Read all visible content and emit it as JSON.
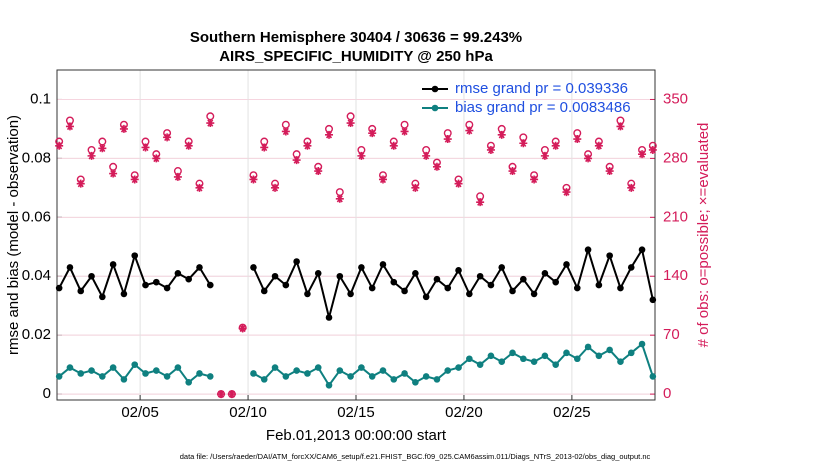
{
  "chart_data": {
    "type": "line",
    "title": "Southern Hemisphere 30404 / 30636 = 99.243%",
    "subtitle": "AIRS_SPECIFIC_HUMIDITY @ 250 hPa",
    "x_label": "Feb.01,2013 00:00:00 start",
    "y_label": "rmse and bias (model - observation)",
    "y2_label": "# of obs: o=possible; ×=evaluated",
    "footnote": "data file: /Users/raeder/DAI/ATM_forcXX/CAM6_setup/f.e21.FHIST_BGC.f09_025.CAM6assim.011/Diags_NTrS_2013-02/obs_diag_output.nc",
    "xlim": [
      1.15,
      28.85
    ],
    "xticks": [
      {
        "value": 5,
        "label": "02/05"
      },
      {
        "value": 10,
        "label": "02/10"
      },
      {
        "value": 15,
        "label": "02/15"
      },
      {
        "value": 20,
        "label": "02/20"
      },
      {
        "value": 25,
        "label": "02/25"
      }
    ],
    "ylim": [
      -0.002,
      0.11
    ],
    "yticks": [
      0,
      0.02,
      0.04,
      0.06,
      0.08,
      0.1
    ],
    "y2lim": [
      -7,
      385
    ],
    "y2ticks": [
      0,
      70,
      140,
      210,
      280,
      350
    ],
    "grid": true,
    "legend": "top-right",
    "x": [
      1.25,
      1.75,
      2.25,
      2.75,
      3.25,
      3.75,
      4.25,
      4.75,
      5.25,
      5.75,
      6.25,
      6.75,
      7.25,
      7.75,
      8.25,
      8.75,
      9.25,
      9.75,
      10.25,
      10.75,
      11.25,
      11.75,
      12.25,
      12.75,
      13.25,
      13.75,
      14.25,
      14.75,
      15.25,
      15.75,
      16.25,
      16.75,
      17.25,
      17.75,
      18.25,
      18.75,
      19.25,
      19.75,
      20.25,
      20.75,
      21.25,
      21.75,
      22.25,
      22.75,
      23.25,
      23.75,
      24.25,
      24.75,
      25.25,
      25.75,
      26.25,
      26.75,
      27.25,
      27.75,
      28.25,
      28.75
    ],
    "series": [
      {
        "name": "rmse grand pr = 0.039336",
        "color": "#000000",
        "marker": "filled",
        "values": [
          0.036,
          0.043,
          0.035,
          0.04,
          0.033,
          0.044,
          0.034,
          0.047,
          0.037,
          0.038,
          0.036,
          0.041,
          0.039,
          0.043,
          0.037,
          null,
          null,
          null,
          0.043,
          0.035,
          0.04,
          0.037,
          0.045,
          0.034,
          0.041,
          0.026,
          0.04,
          0.034,
          0.043,
          0.036,
          0.044,
          0.038,
          0.035,
          0.041,
          0.033,
          0.039,
          0.036,
          0.042,
          0.034,
          0.04,
          0.037,
          0.043,
          0.035,
          0.039,
          0.034,
          0.041,
          0.038,
          0.044,
          0.036,
          0.049,
          0.037,
          0.047,
          0.036,
          0.043,
          0.049,
          0.032
        ]
      },
      {
        "name": "bias grand pr = 0.0083486",
        "color": "#0f8080",
        "marker": "filled",
        "values": [
          0.006,
          0.009,
          0.007,
          0.008,
          0.006,
          0.009,
          0.005,
          0.01,
          0.007,
          0.008,
          0.006,
          0.009,
          0.004,
          0.007,
          0.006,
          null,
          null,
          null,
          0.007,
          0.005,
          0.009,
          0.006,
          0.008,
          0.007,
          0.009,
          0.003,
          0.008,
          0.006,
          0.009,
          0.006,
          0.008,
          0.005,
          0.007,
          0.004,
          0.006,
          0.005,
          0.008,
          0.009,
          0.012,
          0.01,
          0.013,
          0.011,
          0.014,
          0.012,
          0.011,
          0.013,
          0.01,
          0.014,
          0.012,
          0.016,
          0.013,
          0.015,
          0.011,
          0.014,
          0.017,
          0.006
        ]
      },
      {
        "axis": "y2",
        "color": "#d41c5a",
        "marker": "o",
        "values": [
          300,
          325,
          255,
          290,
          300,
          270,
          320,
          260,
          300,
          285,
          310,
          265,
          300,
          250,
          330,
          0,
          0,
          79,
          260,
          300,
          250,
          320,
          285,
          300,
          270,
          315,
          240,
          330,
          290,
          315,
          260,
          300,
          320,
          250,
          290,
          275,
          310,
          255,
          320,
          235,
          295,
          315,
          270,
          305,
          260,
          290,
          300,
          245,
          310,
          285,
          300,
          270,
          325,
          250,
          290,
          295
        ]
      },
      {
        "axis": "y2",
        "color": "#d41c5a",
        "marker": "*",
        "values": [
          295,
          318,
          250,
          283,
          292,
          262,
          315,
          255,
          293,
          280,
          305,
          258,
          295,
          245,
          322,
          0,
          0,
          78,
          255,
          293,
          245,
          312,
          278,
          295,
          265,
          308,
          232,
          322,
          283,
          310,
          255,
          295,
          312,
          245,
          283,
          270,
          303,
          250,
          313,
          228,
          290,
          308,
          265,
          298,
          255,
          283,
          295,
          240,
          303,
          280,
          295,
          265,
          318,
          245,
          285,
          290
        ]
      }
    ]
  }
}
